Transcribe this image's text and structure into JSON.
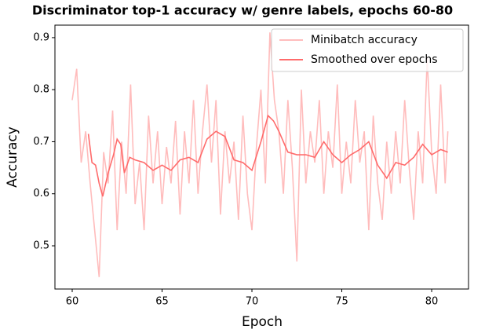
{
  "chart_data": {
    "type": "line",
    "title": "Discriminator top-1 accuracy w/ genre labels, epochs 60-80",
    "xlabel": "Epoch",
    "ylabel": "Accuracy",
    "xlim": [
      59.04,
      82.05
    ],
    "ylim": [
      0.417,
      0.924
    ],
    "xticks": [
      60,
      65,
      70,
      75,
      80
    ],
    "yticks": [
      0.5,
      0.6,
      0.7,
      0.8,
      0.9
    ],
    "legend": "upper right",
    "series": [
      {
        "name": "Minibatch accuracy",
        "color": "#ffbcbc",
        "x": [
          60,
          60.25,
          60.5,
          60.75,
          61,
          61.25,
          61.5,
          61.75,
          62,
          62.25,
          62.5,
          62.75,
          63,
          63.25,
          63.5,
          63.75,
          64,
          64.25,
          64.5,
          64.75,
          65,
          65.25,
          65.5,
          65.75,
          66,
          66.25,
          66.5,
          66.75,
          67,
          67.25,
          67.5,
          67.75,
          68,
          68.25,
          68.5,
          68.75,
          69,
          69.25,
          69.5,
          69.75,
          70,
          70.25,
          70.5,
          70.75,
          71,
          71.25,
          71.5,
          71.75,
          72,
          72.25,
          72.5,
          72.75,
          73,
          73.25,
          73.5,
          73.75,
          74,
          74.25,
          74.5,
          74.75,
          75,
          75.25,
          75.5,
          75.75,
          76,
          76.25,
          76.5,
          76.75,
          77,
          77.25,
          77.5,
          77.75,
          78,
          78.25,
          78.5,
          78.75,
          79,
          79.25,
          79.5,
          79.75,
          80,
          80.25,
          80.5,
          80.75,
          80.9
        ],
        "values": [
          0.78,
          0.84,
          0.66,
          0.72,
          0.62,
          0.53,
          0.44,
          0.68,
          0.62,
          0.76,
          0.53,
          0.7,
          0.6,
          0.81,
          0.58,
          0.66,
          0.53,
          0.75,
          0.62,
          0.72,
          0.58,
          0.69,
          0.62,
          0.74,
          0.56,
          0.72,
          0.62,
          0.78,
          0.6,
          0.72,
          0.81,
          0.66,
          0.78,
          0.56,
          0.72,
          0.62,
          0.7,
          0.55,
          0.75,
          0.6,
          0.53,
          0.69,
          0.8,
          0.62,
          0.91,
          0.78,
          0.72,
          0.6,
          0.78,
          0.65,
          0.47,
          0.8,
          0.62,
          0.72,
          0.66,
          0.78,
          0.6,
          0.72,
          0.65,
          0.81,
          0.6,
          0.7,
          0.62,
          0.78,
          0.66,
          0.72,
          0.53,
          0.75,
          0.62,
          0.55,
          0.7,
          0.6,
          0.72,
          0.62,
          0.78,
          0.65,
          0.55,
          0.72,
          0.62,
          0.86,
          0.68,
          0.6,
          0.81,
          0.62,
          0.72
        ]
      },
      {
        "name": "Smoothed over epochs",
        "color": "#ff6b6b",
        "x": [
          60.9,
          61.1,
          61.3,
          61.5,
          61.7,
          62,
          62.3,
          62.5,
          62.7,
          62.9,
          63.2,
          63.5,
          64,
          64.5,
          65,
          65.5,
          66,
          66.5,
          67,
          67.5,
          68,
          68.5,
          69,
          69.5,
          70,
          70.5,
          70.9,
          71.2,
          71.5,
          72,
          72.5,
          73,
          73.5,
          74,
          74.5,
          75,
          75.5,
          76,
          76.5,
          77,
          77.5,
          78,
          78.5,
          79,
          79.5,
          80,
          80.5,
          80.9
        ],
        "values": [
          0.715,
          0.66,
          0.655,
          0.62,
          0.595,
          0.64,
          0.675,
          0.705,
          0.695,
          0.64,
          0.67,
          0.665,
          0.66,
          0.645,
          0.655,
          0.645,
          0.665,
          0.67,
          0.66,
          0.705,
          0.72,
          0.71,
          0.665,
          0.66,
          0.645,
          0.7,
          0.75,
          0.74,
          0.72,
          0.68,
          0.675,
          0.675,
          0.67,
          0.7,
          0.675,
          0.66,
          0.675,
          0.685,
          0.7,
          0.655,
          0.63,
          0.66,
          0.655,
          0.67,
          0.695,
          0.675,
          0.685,
          0.68
        ]
      }
    ]
  }
}
